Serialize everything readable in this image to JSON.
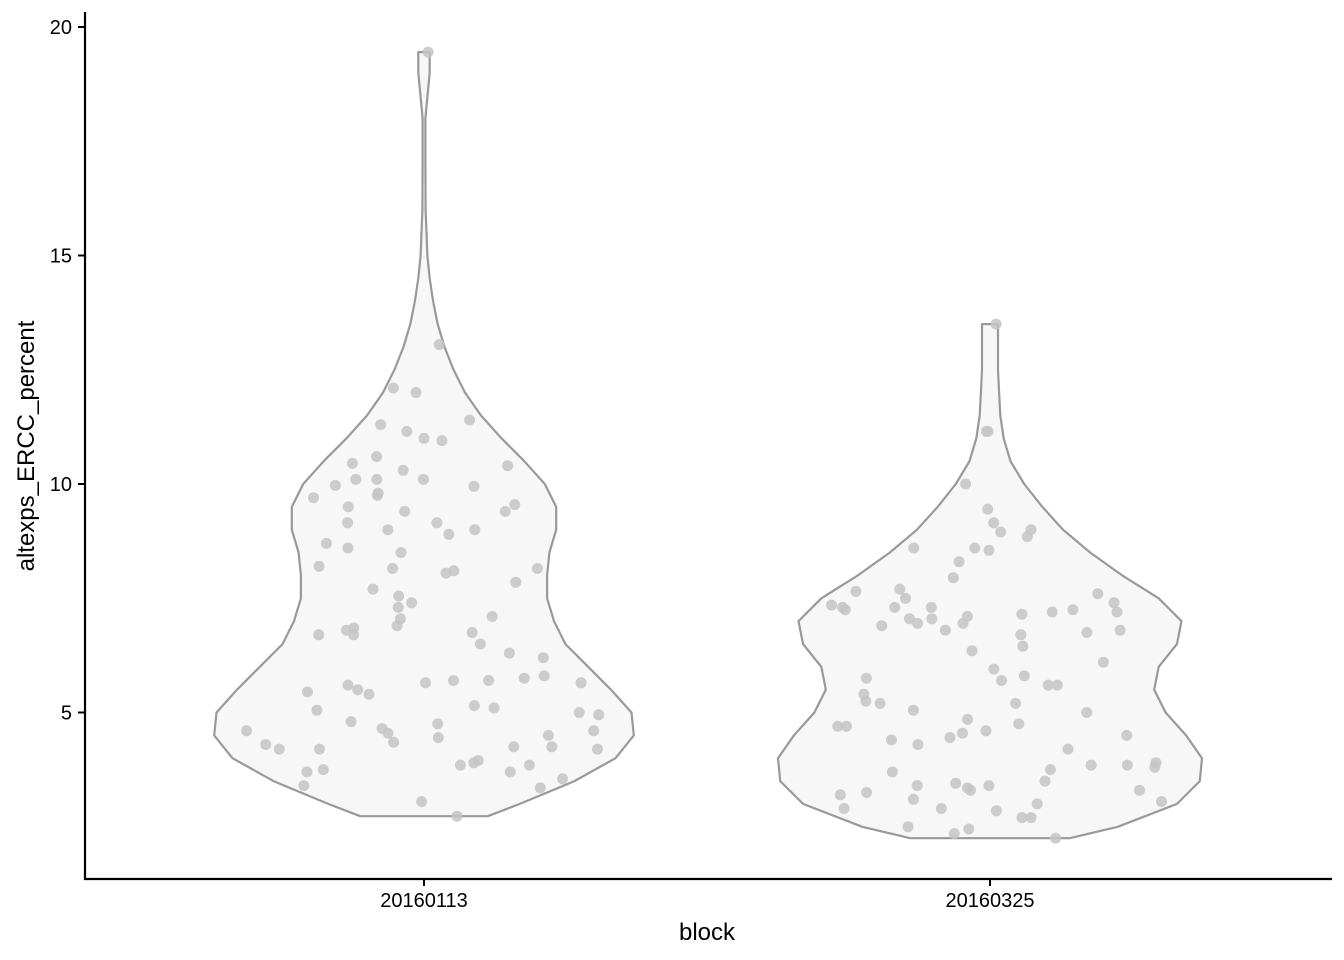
{
  "chart_data": {
    "type": "violin",
    "xlabel": "block",
    "ylabel": "altexps_ERCC_percent",
    "categories": [
      "20160113",
      "20160325"
    ],
    "ylim": [
      1.5,
      20.3
    ],
    "yticks": [
      5,
      10,
      15,
      20
    ],
    "grid": false,
    "legend": "none",
    "colors": {
      "violin_fill": "#f7f7f7",
      "violin_stroke": "#999999",
      "point": "#c4c4c4",
      "axis": "#000000"
    },
    "violins": [
      {
        "category": "20160113",
        "min": 2.73,
        "max": 19.45,
        "density": [
          [
            2.73,
            0.28
          ],
          [
            3.0,
            0.42
          ],
          [
            3.5,
            0.66
          ],
          [
            4.0,
            0.84
          ],
          [
            4.5,
            0.92
          ],
          [
            5.0,
            0.91
          ],
          [
            5.5,
            0.82
          ],
          [
            6.0,
            0.72
          ],
          [
            6.5,
            0.62
          ],
          [
            7.0,
            0.57
          ],
          [
            7.5,
            0.54
          ],
          [
            8.0,
            0.54
          ],
          [
            8.5,
            0.55
          ],
          [
            9.0,
            0.58
          ],
          [
            9.5,
            0.58
          ],
          [
            10.0,
            0.53
          ],
          [
            10.5,
            0.44
          ],
          [
            11.0,
            0.34
          ],
          [
            11.5,
            0.25
          ],
          [
            12.0,
            0.18
          ],
          [
            12.5,
            0.13
          ],
          [
            13.0,
            0.09
          ],
          [
            13.5,
            0.06
          ],
          [
            14.0,
            0.04
          ],
          [
            14.5,
            0.025
          ],
          [
            15.0,
            0.015
          ],
          [
            16.0,
            0.007
          ],
          [
            17.0,
            0.006
          ],
          [
            18.0,
            0.006
          ],
          [
            19.0,
            0.025
          ],
          [
            19.45,
            0.025
          ]
        ],
        "points": [
          19.45,
          13.05,
          12.1,
          12.0,
          11.4,
          11.3,
          11.15,
          11.0,
          10.95,
          10.6,
          10.45,
          10.4,
          10.3,
          10.1,
          10.1,
          10.1,
          9.97,
          9.95,
          9.8,
          9.75,
          9.7,
          9.55,
          9.5,
          9.4,
          9.4,
          9.15,
          9.15,
          9.0,
          9.0,
          8.9,
          8.7,
          8.6,
          8.5,
          8.2,
          8.15,
          8.15,
          8.1,
          8.05,
          7.85,
          7.7,
          7.55,
          7.4,
          7.3,
          7.1,
          7.05,
          6.9,
          6.85,
          6.8,
          6.75,
          6.7,
          6.7,
          6.5,
          6.3,
          6.2,
          5.8,
          5.75,
          5.7,
          5.7,
          5.65,
          5.65,
          5.6,
          5.5,
          5.45,
          5.4,
          5.15,
          5.1,
          5.05,
          5.0,
          4.95,
          4.8,
          4.75,
          4.65,
          4.6,
          4.6,
          4.55,
          4.5,
          4.45,
          4.35,
          4.3,
          4.25,
          4.25,
          4.2,
          4.2,
          4.2,
          3.95,
          3.9,
          3.85,
          3.85,
          3.75,
          3.7,
          3.7,
          3.55,
          3.4,
          3.35,
          3.05,
          2.73
        ]
      },
      {
        "category": "20160325",
        "min": 2.25,
        "max": 13.5,
        "density": [
          [
            2.25,
            0.35
          ],
          [
            2.5,
            0.56
          ],
          [
            3.0,
            0.82
          ],
          [
            3.5,
            0.92
          ],
          [
            4.0,
            0.93
          ],
          [
            4.5,
            0.86
          ],
          [
            5.0,
            0.77
          ],
          [
            5.5,
            0.72
          ],
          [
            6.0,
            0.74
          ],
          [
            6.5,
            0.82
          ],
          [
            7.0,
            0.84
          ],
          [
            7.5,
            0.74
          ],
          [
            8.0,
            0.58
          ],
          [
            8.5,
            0.44
          ],
          [
            9.0,
            0.32
          ],
          [
            9.5,
            0.23
          ],
          [
            10.0,
            0.15
          ],
          [
            10.5,
            0.09
          ],
          [
            11.0,
            0.06
          ],
          [
            11.5,
            0.045
          ],
          [
            12.0,
            0.04
          ],
          [
            12.5,
            0.035
          ],
          [
            13.0,
            0.035
          ],
          [
            13.5,
            0.035
          ]
        ],
        "points": [
          13.5,
          11.15,
          11.15,
          10.0,
          9.45,
          9.15,
          9.0,
          8.95,
          8.85,
          8.6,
          8.6,
          8.55,
          8.3,
          7.95,
          7.7,
          7.65,
          7.6,
          7.5,
          7.4,
          7.35,
          7.3,
          7.3,
          7.3,
          7.25,
          7.25,
          7.2,
          7.2,
          7.15,
          7.1,
          7.05,
          7.05,
          6.95,
          6.95,
          6.9,
          6.8,
          6.8,
          6.75,
          6.7,
          6.45,
          6.35,
          6.1,
          5.95,
          5.8,
          5.75,
          5.7,
          5.6,
          5.6,
          5.4,
          5.25,
          5.2,
          5.2,
          5.05,
          5.0,
          4.85,
          4.75,
          4.7,
          4.7,
          4.6,
          4.55,
          4.5,
          4.45,
          4.4,
          4.3,
          4.2,
          3.9,
          3.85,
          3.85,
          3.8,
          3.75,
          3.7,
          3.5,
          3.45,
          3.4,
          3.4,
          3.35,
          3.3,
          3.3,
          3.25,
          3.2,
          3.1,
          3.05,
          3.0,
          2.9,
          2.9,
          2.85,
          2.7,
          2.7,
          2.5,
          2.45,
          2.35,
          2.25
        ]
      }
    ]
  }
}
